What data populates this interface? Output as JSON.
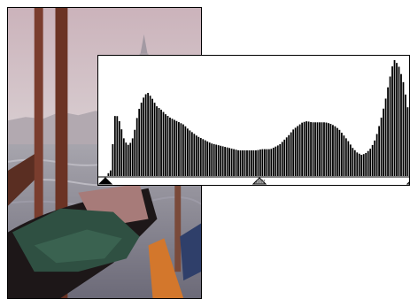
{
  "photo": {
    "subject": "photo-venice-gondolas",
    "sky_color": "#cbb7bd",
    "water_color": "#8e8e9a"
  },
  "histogram": {
    "bin_count": 256,
    "levels": [
      0.0,
      0.05,
      0.55,
      0.46,
      0.3,
      0.26,
      0.34,
      0.55,
      0.66,
      0.72,
      0.67,
      0.6,
      0.57,
      0.53,
      0.5,
      0.48,
      0.46,
      0.44,
      0.4,
      0.37,
      0.34,
      0.32,
      0.3,
      0.28,
      0.27,
      0.26,
      0.25,
      0.24,
      0.23,
      0.22,
      0.22,
      0.22,
      0.22,
      0.22,
      0.23,
      0.23,
      0.23,
      0.25,
      0.27,
      0.31,
      0.35,
      0.4,
      0.43,
      0.46,
      0.47,
      0.46,
      0.46,
      0.46,
      0.46,
      0.45,
      0.43,
      0.4,
      0.35,
      0.3,
      0.24,
      0.2,
      0.18,
      0.2,
      0.24,
      0.32,
      0.46,
      0.62,
      0.82,
      1.0,
      0.95,
      0.82,
      0.6,
      0.3
    ],
    "shadow_slider": 0,
    "midtone_slider": 0.5,
    "highlight_slider": 1
  }
}
